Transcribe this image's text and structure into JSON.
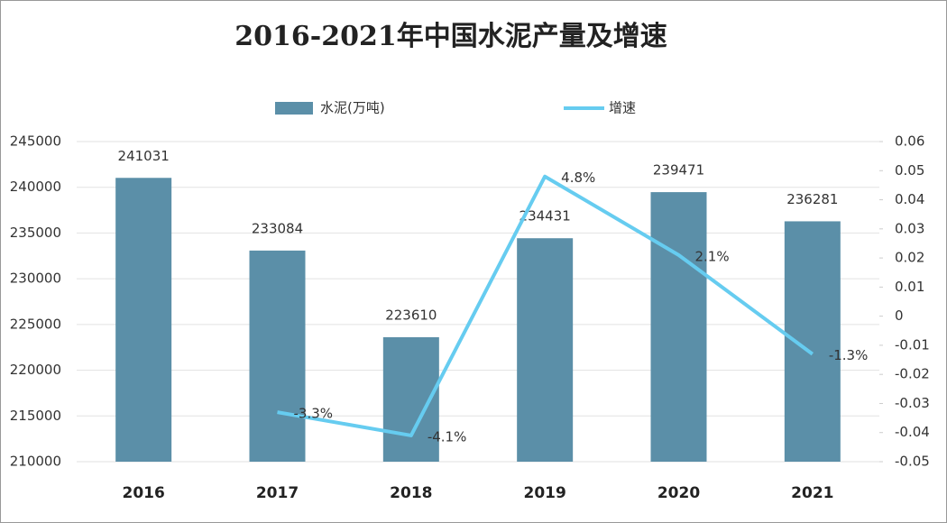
{
  "chart_data": {
    "type": "bar",
    "title": "2016-2021年中国水泥产量及增速",
    "categories": [
      "2016",
      "2017",
      "2018",
      "2019",
      "2020",
      "2021"
    ],
    "series": [
      {
        "name": "水泥(万吨)",
        "type": "bar",
        "color": "#5b8fa8",
        "values": [
          241031,
          233084,
          223610,
          234431,
          239471,
          236281
        ]
      },
      {
        "name": "增速",
        "type": "line",
        "axis": "y2",
        "color": "#66ccf0",
        "values": [
          null,
          -0.033,
          -0.041,
          0.048,
          0.021,
          -0.013
        ],
        "value_labels": [
          null,
          "-3.3%",
          "-4.1%",
          "4.8%",
          "2.1%",
          "-1.3%"
        ]
      }
    ],
    "ylim": [
      210000,
      245000
    ],
    "yticks": [
      210000,
      215000,
      220000,
      225000,
      230000,
      235000,
      240000,
      245000
    ],
    "y2lim": [
      -0.05,
      0.06
    ],
    "y2ticks": [
      -0.05,
      -0.04,
      -0.03,
      -0.02,
      -0.01,
      0,
      0.01,
      0.02,
      0.03,
      0.04,
      0.05,
      0.06
    ],
    "grid": true,
    "legend": "top"
  }
}
